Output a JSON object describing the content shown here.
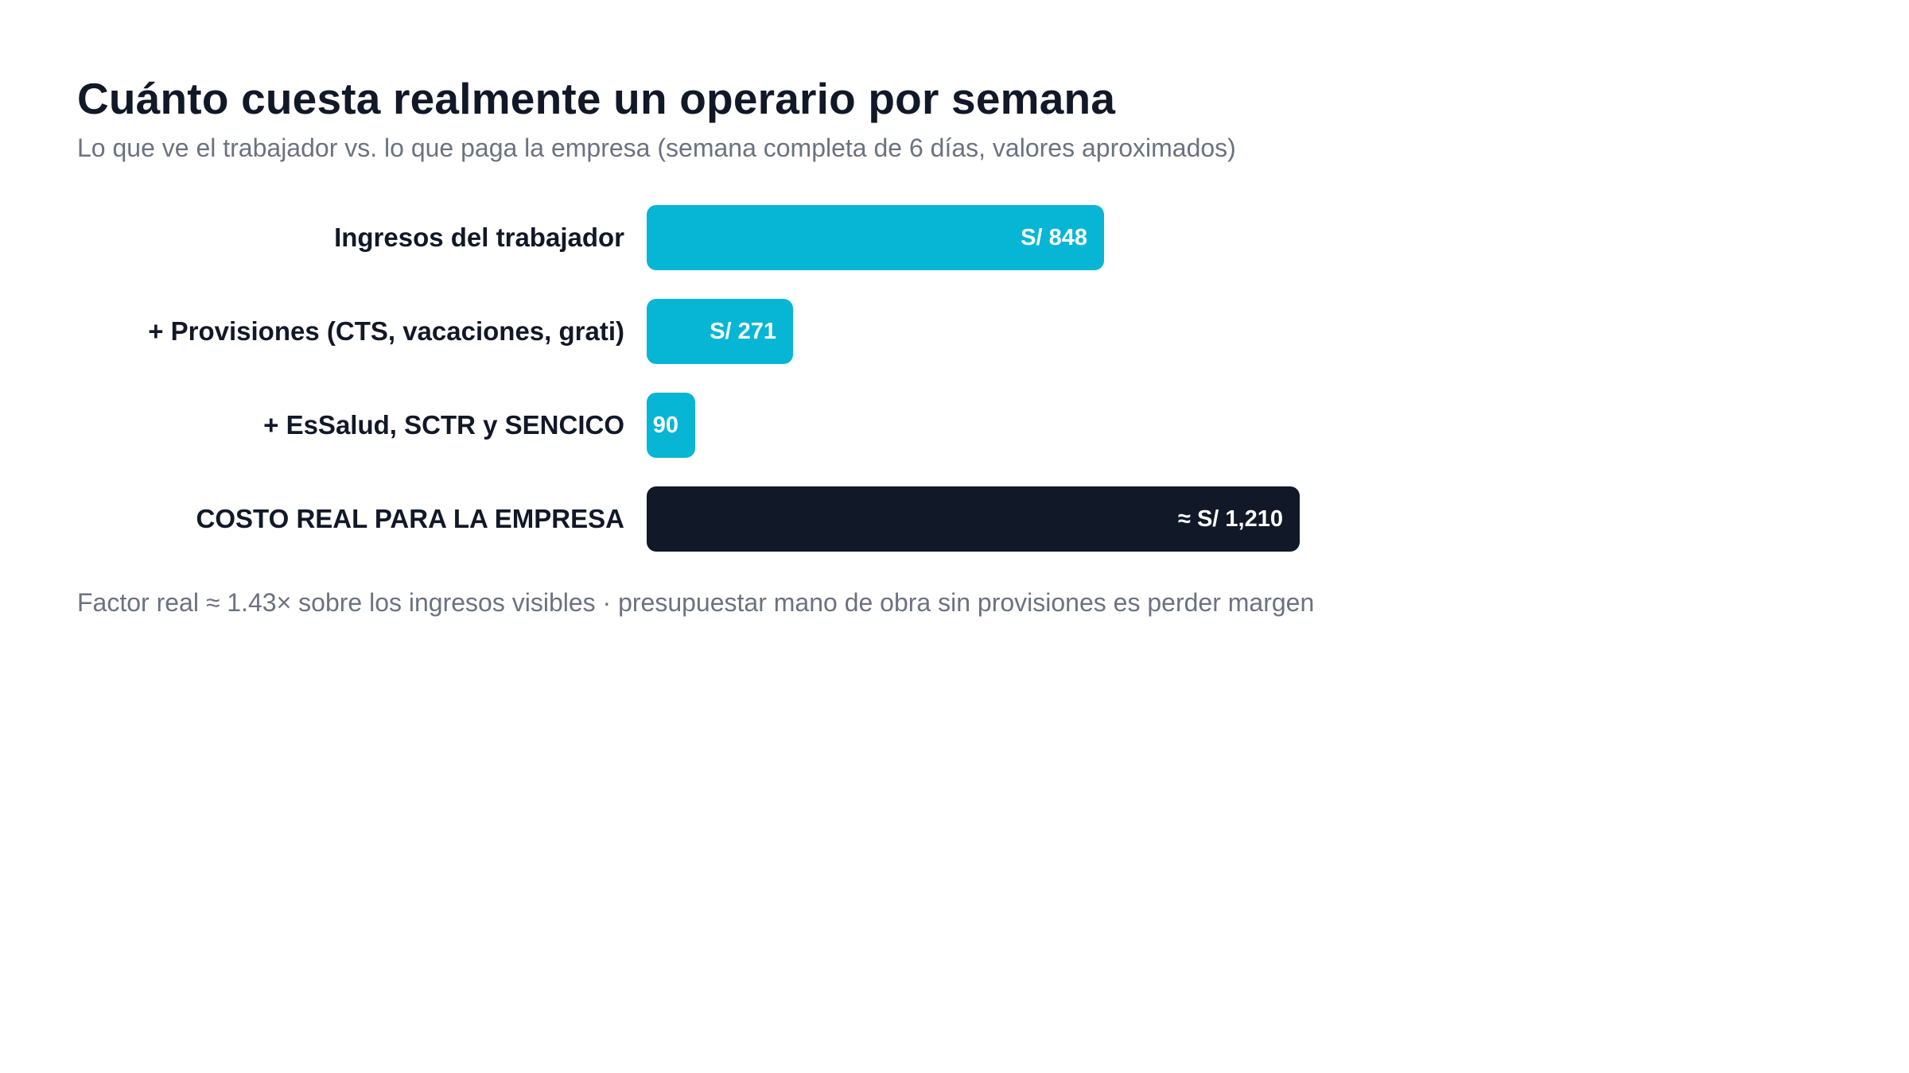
{
  "header": {
    "title": "Cuánto cuesta realmente un operario por semana",
    "subtitle": "Lo que ve el trabajador vs. lo que paga la empresa (semana completa de 6 días, valores aproximados)"
  },
  "chart_data": {
    "type": "bar",
    "orientation": "horizontal",
    "title": "Cuánto cuesta realmente un operario por semana",
    "subtitle": "Lo que ve el trabajador vs. lo que paga la empresa (semana completa de 6 días, valores aproximados)",
    "categories": [
      "Ingresos del trabajador",
      "+ Provisiones (CTS, vacaciones, grati)",
      "+ EsSalud, SCTR y SENCICO",
      "COSTO REAL PARA LA EMPRESA"
    ],
    "values": [
      848,
      271,
      90,
      1210
    ],
    "value_labels": [
      "S/ 848",
      "S/ 271",
      "S/ 90",
      "≈ S/ 1,210"
    ],
    "colors": [
      "#06b6d4",
      "#06b6d4",
      "#06b6d4",
      "#111827"
    ],
    "xlim": [
      0,
      1450
    ],
    "grid": false,
    "legend": "none"
  },
  "footer": {
    "note": "Factor real ≈ 1.43× sobre los ingresos visibles · presupuestar mano de obra sin provisiones es perder margen"
  }
}
